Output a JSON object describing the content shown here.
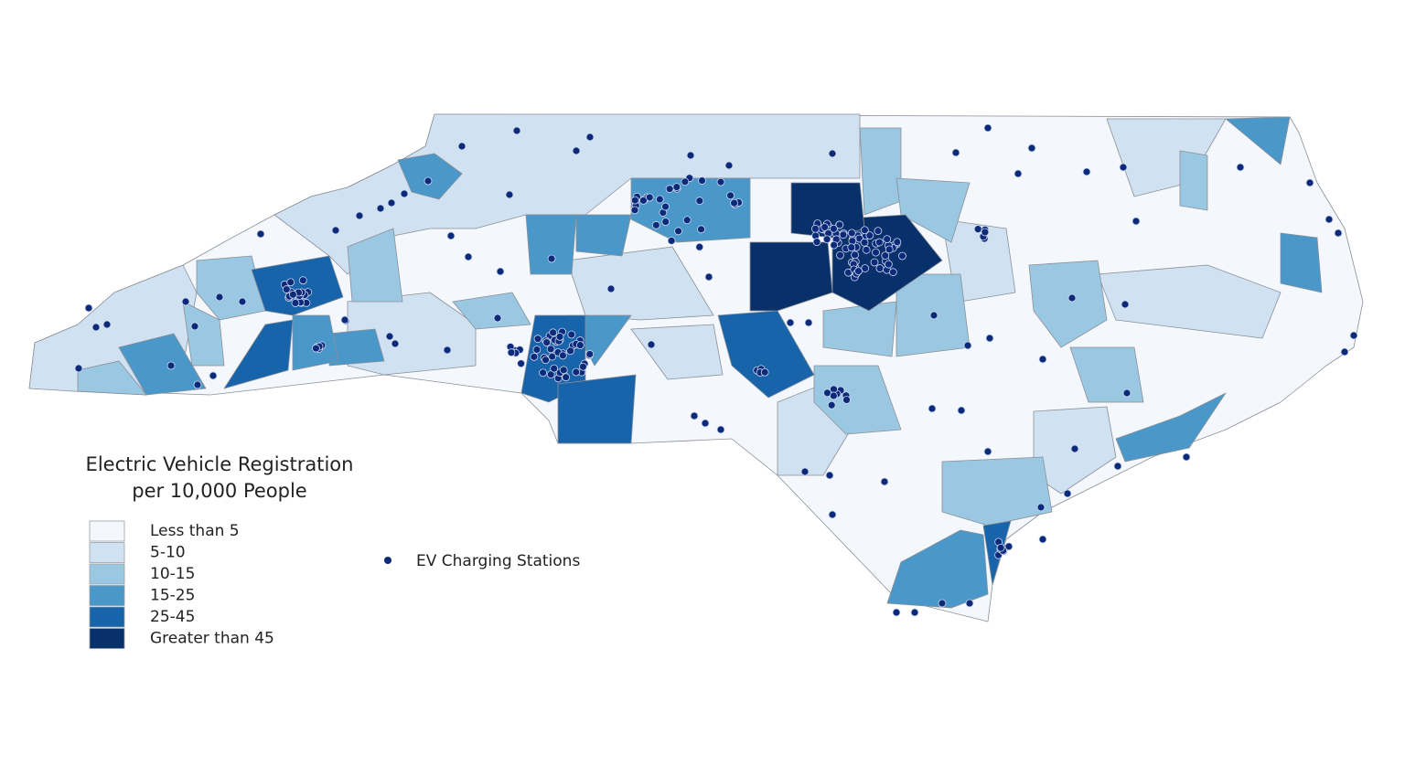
{
  "legend": {
    "title": [
      "Electric Vehicle Registration",
      "per 10,000 People"
    ],
    "items": [
      {
        "label": "Less than 5",
        "color": "#f4f8fd"
      },
      {
        "label": "5-10",
        "color": "#d0e1f2"
      },
      {
        "label": "10-15",
        "color": "#9ac8e3"
      },
      {
        "label": "15-25",
        "color": "#4a98c9"
      },
      {
        "label": "25-45",
        "color": "#1764ab"
      },
      {
        "label": "Greater than 45",
        "color": "#08306b"
      }
    ]
  },
  "points_legend": {
    "label": "EV Charging Stations",
    "color": "#0b2a7a"
  }
}
